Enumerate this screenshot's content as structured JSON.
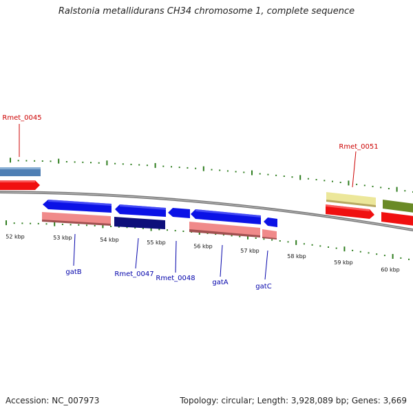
{
  "title": "Ralstonia metallidurans CH34 chromosome 1, complete sequence",
  "footer": {
    "accession": "Accession: NC_007973",
    "summary": "Topology: circular; Length: 3,928,089 bp; Genes: 3,669"
  },
  "scale_labels": [
    "52 kbp",
    "53 kbp",
    "54 kbp",
    "55 kbp",
    "56 kbp",
    "57 kbp",
    "58 kbp",
    "59 kbp",
    "60 kbp"
  ],
  "gene_labels": {
    "Rmet_0045": "Rmet_0045",
    "Rmet_0051": "Rmet_0051",
    "gatB": "gatB",
    "Rmet_0047": "Rmet_0047",
    "Rmet_0048": "Rmet_0048",
    "gatA": "gatA",
    "gatC": "gatC"
  },
  "colors": {
    "red_label": "#cc0000",
    "blue_label": "#0000aa",
    "tick": "#2e7d1e",
    "backbone": "#777777",
    "feature_blue": "#0b12e6",
    "feature_navy": "#0d0f7a",
    "feature_salmon": "#f08a8a",
    "feature_red": "#f01010",
    "feature_steel": "#4f7fb4",
    "feature_khaki": "#ece79a",
    "feature_olive": "#6a8a26"
  }
}
